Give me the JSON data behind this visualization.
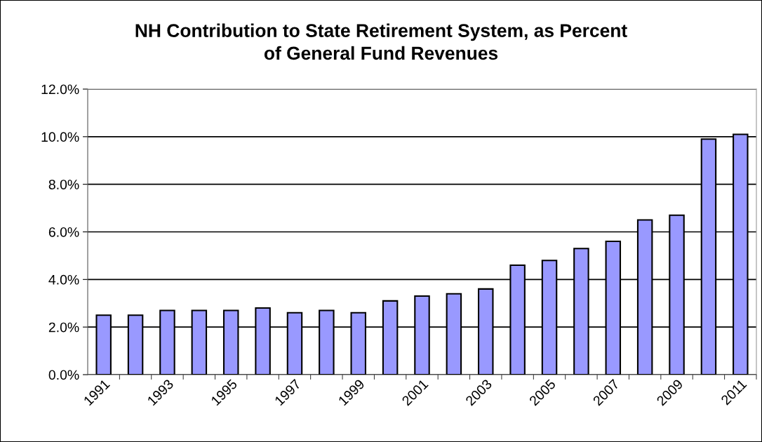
{
  "chart_data": {
    "type": "bar",
    "title": "NH Contribution to State Retirement System, as Percent\nof General Fund Revenues",
    "categories": [
      "1991",
      null,
      "1993",
      null,
      "1995",
      null,
      "1997",
      null,
      "1999",
      null,
      "2001",
      null,
      "2003",
      null,
      "2005",
      null,
      "2007",
      null,
      "2009",
      null,
      "2011"
    ],
    "values": [
      2.5,
      2.5,
      2.7,
      2.7,
      2.7,
      2.8,
      2.6,
      2.7,
      2.6,
      3.1,
      3.3,
      3.4,
      3.6,
      4.6,
      4.8,
      5.3,
      5.6,
      6.5,
      6.7,
      9.9,
      10.1
    ],
    "color": "#9999ff",
    "ylim": [
      0,
      12
    ],
    "yticks": [
      {
        "value": 0,
        "label": "0.0%"
      },
      {
        "value": 2,
        "label": "2.0%"
      },
      {
        "value": 4,
        "label": "4.0%"
      },
      {
        "value": 6,
        "label": "6.0%"
      },
      {
        "value": 8,
        "label": "8.0%"
      },
      {
        "value": 10,
        "label": "10.0%"
      },
      {
        "value": 12,
        "label": "12.0%"
      }
    ],
    "grid": "y"
  }
}
